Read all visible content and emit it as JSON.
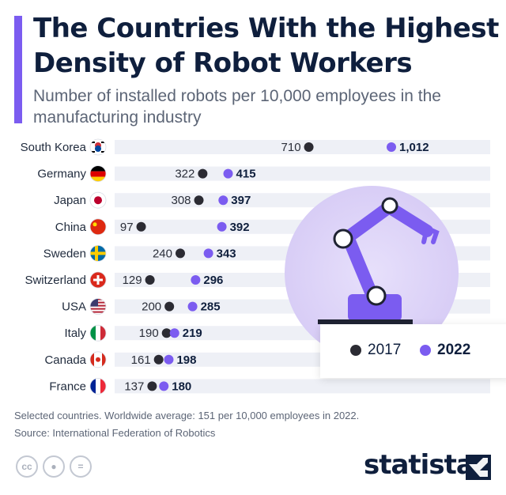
{
  "title": "The Countries With the Highest Density of Robot Workers",
  "subtitle": "Number of installed robots per 10,000 employees in the manufacturing industry",
  "footnote": "Selected countries. Worldwide average: 151 per 10,000 employees in 2022.",
  "source": "Source: International Federation of Robotics",
  "brand": "statista",
  "license_icons": [
    "cc-icon",
    "attribution-icon",
    "no-derivatives-icon"
  ],
  "colors": {
    "accent": "#7b5cf0",
    "dot_2017": "#2b2b33",
    "dot_2022": "#7b5cf0",
    "row_bg": "#eef0f6",
    "navy": "#0f1f3d"
  },
  "chart_data": {
    "type": "dumbbell",
    "categories": [
      "South Korea",
      "Germany",
      "Japan",
      "China",
      "Sweden",
      "Switzerland",
      "USA",
      "Italy",
      "Canada",
      "France"
    ],
    "flags": [
      "south-korea-flag",
      "germany-flag",
      "japan-flag",
      "china-flag",
      "sweden-flag",
      "switzerland-flag",
      "usa-flag",
      "italy-flag",
      "canada-flag",
      "france-flag"
    ],
    "series": [
      {
        "name": "2017",
        "values": [
          710,
          322,
          308,
          97,
          240,
          129,
          200,
          190,
          161,
          137
        ]
      },
      {
        "name": "2022",
        "values": [
          1012,
          415,
          397,
          392,
          343,
          296,
          285,
          219,
          198,
          180
        ]
      }
    ],
    "value_labels_2017": [
      "710",
      "322",
      "308",
      "97",
      "240",
      "129",
      "200",
      "190",
      "161",
      "137"
    ],
    "value_labels_2022": [
      "1,012",
      "415",
      "397",
      "392",
      "343",
      "296",
      "285",
      "219",
      "198",
      "180"
    ],
    "legend": [
      "2017",
      "2022"
    ],
    "legend_position": "right"
  }
}
